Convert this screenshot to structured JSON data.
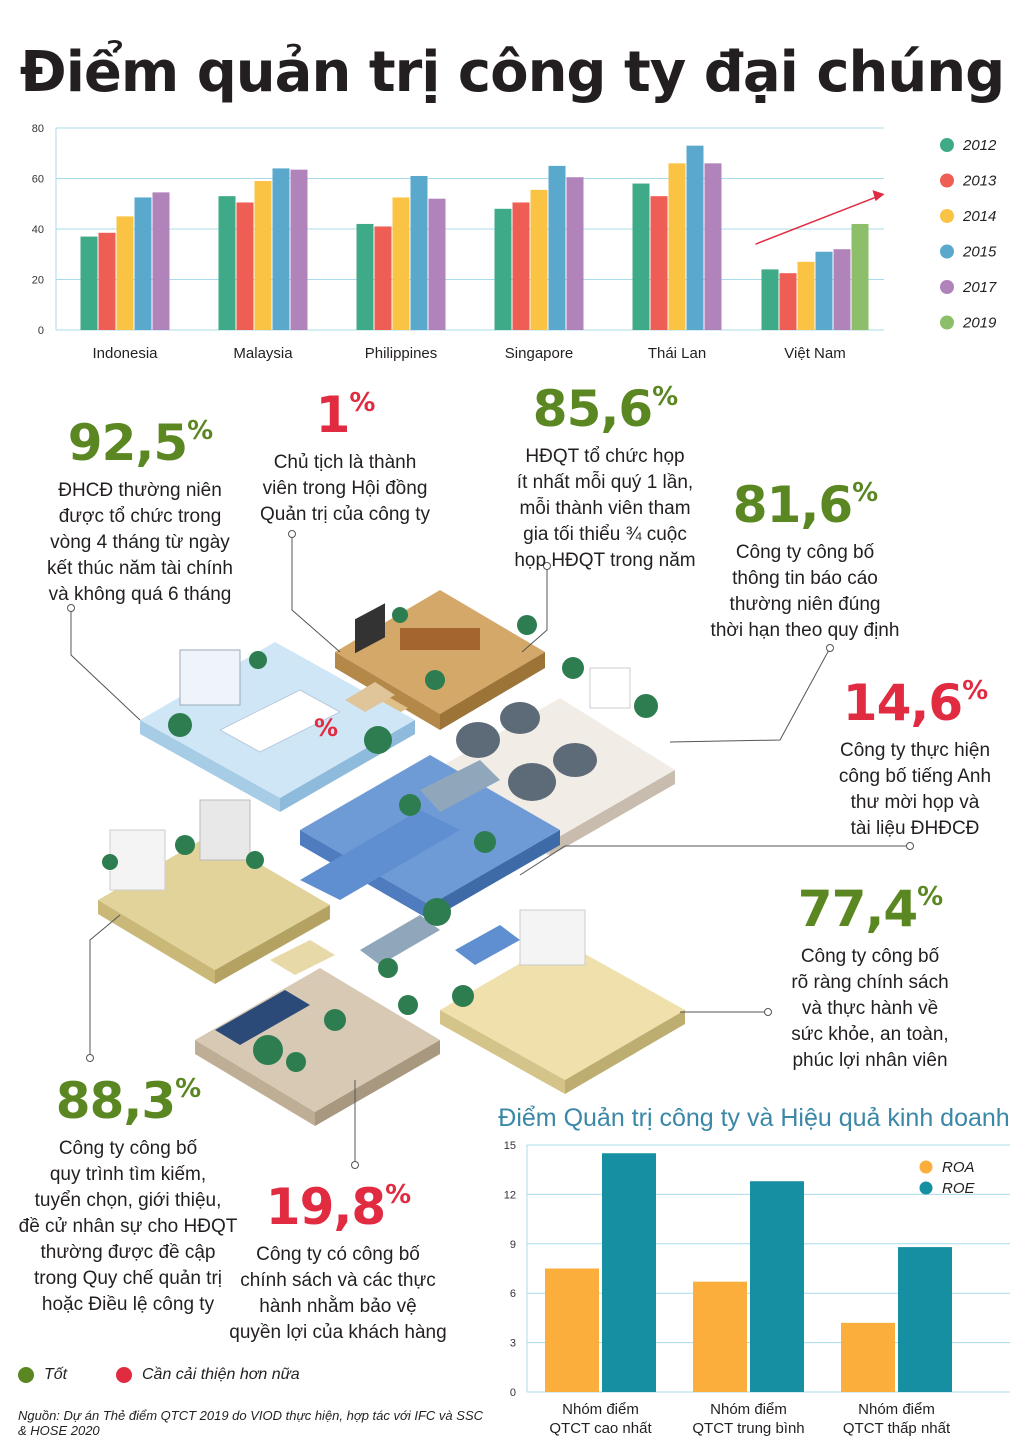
{
  "title": "Điểm quản trị công ty đại chúng",
  "chart_data": [
    {
      "type": "bar",
      "title": "",
      "categories": [
        "Indonesia",
        "Malaysia",
        "Philippines",
        "Singapore",
        "Thái Lan",
        "Việt Nam"
      ],
      "ylim": [
        0,
        80
      ],
      "yticks": [
        0,
        20,
        40,
        60,
        80
      ],
      "grid": true,
      "legend_position": "right",
      "series": [
        {
          "name": "2012",
          "color": "#3eaa87",
          "values": [
            37,
            53,
            42,
            48,
            58,
            24
          ]
        },
        {
          "name": "2013",
          "color": "#ee5e55",
          "values": [
            38.5,
            50.5,
            41,
            50.5,
            53,
            22.5
          ]
        },
        {
          "name": "2014",
          "color": "#fbc344",
          "values": [
            45,
            59,
            52.5,
            55.5,
            66,
            27
          ]
        },
        {
          "name": "2015",
          "color": "#5ba8cd",
          "values": [
            52.5,
            64,
            61,
            65,
            73,
            31
          ]
        },
        {
          "name": "2017",
          "color": "#b183bb",
          "values": [
            54.5,
            63.5,
            52,
            60.5,
            66,
            32
          ]
        },
        {
          "name": "2019",
          "color": "#8dbf6a",
          "values": [
            null,
            null,
            null,
            null,
            null,
            42
          ]
        }
      ],
      "trend_arrow": {
        "category": "Việt Nam",
        "color": "#e02b41"
      }
    },
    {
      "type": "bar",
      "title": "Điểm Quản trị công ty và Hiệu quả kinh doanh",
      "categories": [
        "Nhóm điểm\nQTCT cao nhất",
        "Nhóm điểm\nQTCT trung bình",
        "Nhóm điểm\nQTCT thấp nhất"
      ],
      "ylim": [
        0,
        15
      ],
      "yticks": [
        0,
        3,
        6,
        9,
        12,
        15
      ],
      "grid": true,
      "legend_position": "top-right",
      "series": [
        {
          "name": "ROA",
          "color": "#fbae3c",
          "values": [
            7.5,
            6.7,
            4.2
          ]
        },
        {
          "name": "ROE",
          "color": "#178fa3",
          "values": [
            14.5,
            12.8,
            8.8
          ]
        }
      ]
    }
  ],
  "stats": [
    {
      "value": "92,5",
      "pct": "%",
      "tone": "green",
      "desc": "ĐHCĐ thường niên\nđược tổ chức trong\nvòng 4 tháng từ ngày\nkết thúc năm tài chính\nvà không quá 6 tháng"
    },
    {
      "value": "1",
      "pct": "%",
      "tone": "red",
      "desc": "Chủ tịch là thành\nviên trong Hội đồng\nQuản trị của công ty"
    },
    {
      "value": "85,6",
      "pct": "%",
      "tone": "green",
      "desc": "HĐQT tổ chức họp\nít nhất mỗi quý 1 lần,\nmỗi thành viên tham\ngia tối thiểu ¾ cuộc\nhọp HĐQT trong năm"
    },
    {
      "value": "81,6",
      "pct": "%",
      "tone": "green",
      "desc": "Công ty công bố\nthông tin báo cáo\nthường niên đúng\nthời hạn theo quy định"
    },
    {
      "value": "14,6",
      "pct": "%",
      "tone": "red",
      "desc": "Công ty thực hiện\ncông bố tiếng Anh\nthư mời họp và\ntài liệu ĐHĐCĐ"
    },
    {
      "value": "77,4",
      "pct": "%",
      "tone": "green",
      "desc": "Công ty công bố\nrõ ràng chính sách\nvà thực hành về\nsức khỏe, an toàn,\nphúc lợi nhân viên"
    },
    {
      "value": "88,3",
      "pct": "%",
      "tone": "green",
      "desc": "Công ty công bố\nquy trình tìm kiếm,\ntuyển chọn, giới thiệu,\nđề cử nhân sự cho HĐQT\nthường được đề cập\ntrong Quy chế quản trị\nhoặc Điều lệ công ty"
    },
    {
      "value": "19,8",
      "pct": "%",
      "tone": "red",
      "desc": "Công ty có công bố\nchính sách và các thực\nhành nhằm bảo vệ\nquyền lợi của khách hàng"
    }
  ],
  "legend": {
    "good": {
      "label": "Tốt",
      "color": "#5b8722"
    },
    "improve": {
      "label": "Cần cải thiện hơn nữa",
      "color": "#e02b41"
    }
  },
  "illustration_badge": "%",
  "source": "Nguồn: Dự án Thẻ điểm QTCT 2019 do VIOD thực hiện, hợp tác với IFC và SSC & HOSE 2020"
}
